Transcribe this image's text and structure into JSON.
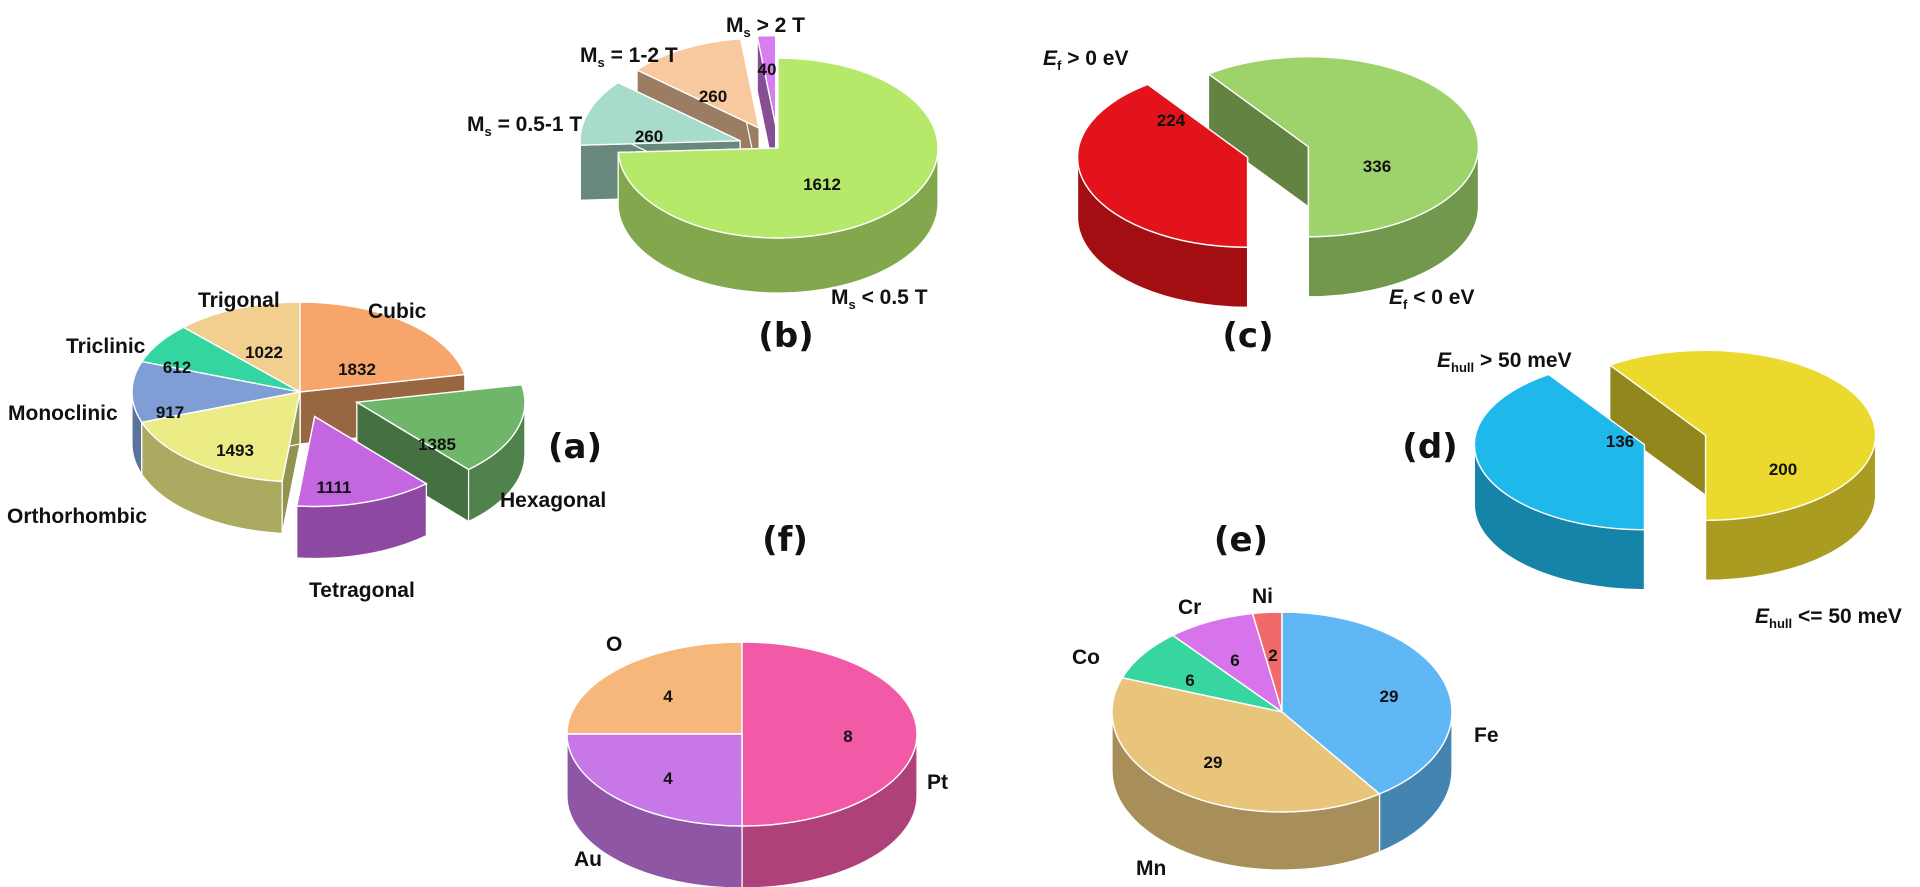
{
  "chart_data": [
    {
      "panel": "(a)",
      "type": "pie",
      "categories": [
        "Cubic",
        "Hexagonal",
        "Tetragonal",
        "Orthorhombic",
        "Monoclinic",
        "Triclinic",
        "Trigonal"
      ],
      "values": [
        1832,
        1385,
        1111,
        1493,
        917,
        612,
        1022
      ],
      "colors": [
        "#f7a56b",
        "#6fb56a",
        "#c466e0",
        "#ecec86",
        "#7f9ed6",
        "#33d6a0",
        "#f2cf8f"
      ]
    },
    {
      "panel": "(b)",
      "type": "pie",
      "categories": [
        "M_s < 0.5 T",
        "M_s = 0.5-1 T",
        "M_s = 1-2 T",
        "M_s > 2 T"
      ],
      "values": [
        1612,
        260,
        260,
        40
      ],
      "colors": [
        "#b6e86a",
        "#a7dccb",
        "#f8c99e",
        "#d77df0"
      ]
    },
    {
      "panel": "(c)",
      "type": "pie",
      "categories": [
        "E_f > 0 eV",
        "E_f < 0 eV"
      ],
      "values": [
        224,
        336
      ],
      "colors": [
        "#e3131b",
        "#9ed36b"
      ]
    },
    {
      "panel": "(d)",
      "type": "pie",
      "categories": [
        "E_hull > 50 meV",
        "E_hull <= 50 meV"
      ],
      "values": [
        136,
        200
      ],
      "colors": [
        "#1eb8ea",
        "#ecd92e"
      ]
    },
    {
      "panel": "(e)",
      "type": "pie",
      "categories": [
        "Fe",
        "Mn",
        "Co",
        "Cr",
        "Ni"
      ],
      "values": [
        29,
        29,
        6,
        6,
        2
      ],
      "colors": [
        "#5fb8f5",
        "#e9c57c",
        "#37d6a0",
        "#d774ec",
        "#f06a6a"
      ]
    },
    {
      "panel": "(f)",
      "type": "pie",
      "categories": [
        "Pt",
        "Au",
        "O"
      ],
      "values": [
        8,
        4,
        4
      ],
      "colors": [
        "#f25aa8",
        "#c778e6",
        "#f7b77a"
      ]
    }
  ],
  "labels": {
    "a": {
      "panel": "(a)",
      "cubic": "Cubic",
      "hexagonal": "Hexagonal",
      "tetragonal": "Tetragonal",
      "orthorhombic": "Orthorhombic",
      "monoclinic": "Monoclinic",
      "triclinic": "Triclinic",
      "trigonal": "Trigonal",
      "v_cubic": "1832",
      "v_hexagonal": "1385",
      "v_tetragonal": "1111",
      "v_orthorhombic": "1493",
      "v_monoclinic": "917",
      "v_triclinic": "612",
      "v_trigonal": "1022"
    },
    "b": {
      "panel": "(b)",
      "m_symbol": "M",
      "m_sub": "s",
      "low": " < 0.5 T",
      "half": " = 0.5-1 T",
      "mid": " = 1-2 T",
      "high": " > 2 T",
      "v_low": "1612",
      "v_half": "260",
      "v_mid": "260",
      "v_high": "40"
    },
    "c": {
      "panel": "(c)",
      "e_symbol": "E",
      "e_sub": "f",
      "pos": " > 0 eV",
      "neg": " < 0 eV",
      "v_pos": "224",
      "v_neg": "336"
    },
    "d": {
      "panel": "(d)",
      "e_symbol": "E",
      "e_sub": "hull",
      "above": " > 50 meV",
      "below": " <= 50 meV",
      "v_above": "136",
      "v_below": "200"
    },
    "e": {
      "panel": "(e)",
      "fe": "Fe",
      "mn": "Mn",
      "co": "Co",
      "cr": "Cr",
      "ni": "Ni",
      "v_fe": "29",
      "v_mn": "29",
      "v_co": "6",
      "v_cr": "6",
      "v_ni": "2"
    },
    "f": {
      "panel": "(f)",
      "pt": "Pt",
      "au": "Au",
      "o": "O",
      "v_pt": "8",
      "v_au": "4",
      "v_o": "4"
    }
  }
}
